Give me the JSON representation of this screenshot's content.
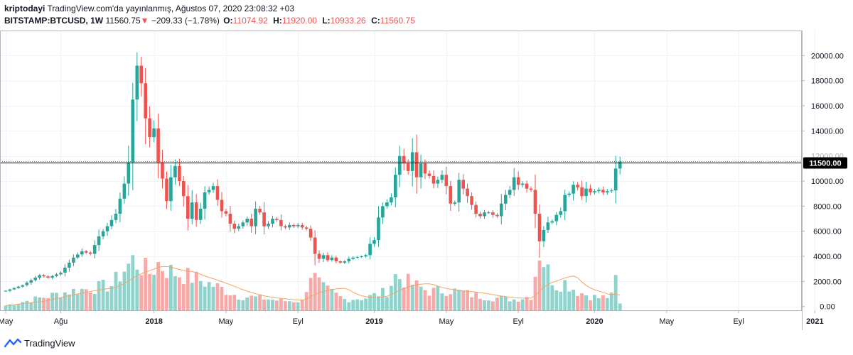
{
  "header": {
    "user": "kriptodayi",
    "published": "TradingView.com'da yayınlanmış, Ağustos 07, 2020 23:08:32 +03",
    "symbol": "BITSTAMP:BTCUSD, 1W",
    "last": "11560.75",
    "change": "−209.33 (−1.78%)",
    "o_label": "O:",
    "o_value": "11074.92",
    "h_label": "H:",
    "h_value": "11920.00",
    "l_label": "L:",
    "l_value": "10933.26",
    "c_label": "C:",
    "c_value": "11560.75"
  },
  "footer": {
    "brand": "TradingView"
  },
  "colors": {
    "up": "#26a69a",
    "down": "#ef5350",
    "vol_up": "#92d2cc",
    "vol_down": "#f7a9a7",
    "ma": "#f4a460",
    "hline": "#000000",
    "price_label": "#000000"
  },
  "chart_data": {
    "type": "candlestick",
    "symbol": "BITSTAMP:BTCUSD",
    "interval": "1W",
    "ylim": [
      -300,
      22000
    ],
    "y_ticks": [
      0,
      2000,
      4000,
      6000,
      8000,
      10000,
      12000,
      14000,
      16000,
      18000,
      20000
    ],
    "y_tick_labels": [
      "0.00",
      "2000.00",
      "4000.00",
      "6000.00",
      "8000.00",
      "10000.00",
      "12000.00",
      "14000.00",
      "16000.00",
      "18000.00",
      "20000.00"
    ],
    "x_ticks": [
      {
        "label": "May",
        "week": 0,
        "bold": false
      },
      {
        "label": "Ağu",
        "week": 13,
        "bold": false
      },
      {
        "label": "2018",
        "week": 35,
        "bold": true
      },
      {
        "label": "May",
        "week": 52,
        "bold": false
      },
      {
        "label": "Eyl",
        "week": 69,
        "bold": false
      },
      {
        "label": "2019",
        "week": 87,
        "bold": true
      },
      {
        "label": "May",
        "week": 104,
        "bold": false
      },
      {
        "label": "Eyl",
        "week": 121,
        "bold": false
      },
      {
        "label": "2020",
        "week": 139,
        "bold": true
      },
      {
        "label": "May",
        "week": 156,
        "bold": false
      },
      {
        "label": "Eyl",
        "week": 173,
        "bold": false
      },
      {
        "label": "2021",
        "week": 191,
        "bold": true
      }
    ],
    "horizontal_line": 11500,
    "price_label": "11500.00",
    "volume_scale_max": 5000,
    "anchors": [
      [
        0,
        1250
      ],
      [
        4,
        1700
      ],
      [
        8,
        2500
      ],
      [
        10,
        2300
      ],
      [
        13,
        2700
      ],
      [
        16,
        3900
      ],
      [
        18,
        4400
      ],
      [
        20,
        4200
      ],
      [
        22,
        5600
      ],
      [
        24,
        6400
      ],
      [
        26,
        7400
      ],
      [
        28,
        9800
      ],
      [
        29,
        11500
      ],
      [
        30,
        16500
      ],
      [
        31,
        19200
      ],
      [
        32,
        17800
      ],
      [
        33,
        15000
      ],
      [
        34,
        13500
      ],
      [
        35,
        14200
      ],
      [
        36,
        11500
      ],
      [
        37,
        10200
      ],
      [
        38,
        8400
      ],
      [
        39,
        10300
      ],
      [
        40,
        11200
      ],
      [
        41,
        10000
      ],
      [
        42,
        8800
      ],
      [
        43,
        7000
      ],
      [
        44,
        8300
      ],
      [
        45,
        6900
      ],
      [
        46,
        7800
      ],
      [
        47,
        9100
      ],
      [
        48,
        9300
      ],
      [
        49,
        9600
      ],
      [
        50,
        8500
      ],
      [
        51,
        7600
      ],
      [
        52,
        7400
      ],
      [
        53,
        6600
      ],
      [
        54,
        6200
      ],
      [
        55,
        6400
      ],
      [
        56,
        6700
      ],
      [
        57,
        7000
      ],
      [
        58,
        6400
      ],
      [
        59,
        7800
      ],
      [
        60,
        7500
      ],
      [
        61,
        6400
      ],
      [
        62,
        6600
      ],
      [
        63,
        7000
      ],
      [
        64,
        6900
      ],
      [
        65,
        6400
      ],
      [
        66,
        6300
      ],
      [
        67,
        6500
      ],
      [
        68,
        6400
      ],
      [
        69,
        6500
      ],
      [
        70,
        6300
      ],
      [
        71,
        6200
      ],
      [
        72,
        5500
      ],
      [
        73,
        4200
      ],
      [
        74,
        3800
      ],
      [
        75,
        4100
      ],
      [
        76,
        3700
      ],
      [
        77,
        3900
      ],
      [
        78,
        3600
      ],
      [
        79,
        3500
      ],
      [
        80,
        3600
      ],
      [
        81,
        3800
      ],
      [
        82,
        3900
      ],
      [
        83,
        3950
      ],
      [
        84,
        4000
      ],
      [
        85,
        4100
      ],
      [
        86,
        5000
      ],
      [
        87,
        5300
      ],
      [
        88,
        7100
      ],
      [
        89,
        8000
      ],
      [
        90,
        8300
      ],
      [
        91,
        8700
      ],
      [
        92,
        10500
      ],
      [
        93,
        12000
      ],
      [
        94,
        11400
      ],
      [
        95,
        10800
      ],
      [
        96,
        12300
      ],
      [
        97,
        10300
      ],
      [
        98,
        11400
      ],
      [
        99,
        10600
      ],
      [
        100,
        10400
      ],
      [
        101,
        9800
      ],
      [
        102,
        10100
      ],
      [
        103,
        10500
      ],
      [
        104,
        9600
      ],
      [
        105,
        8200
      ],
      [
        106,
        8300
      ],
      [
        107,
        10100
      ],
      [
        108,
        9400
      ],
      [
        109,
        8800
      ],
      [
        110,
        8100
      ],
      [
        111,
        7400
      ],
      [
        112,
        7200
      ],
      [
        113,
        7500
      ],
      [
        114,
        7500
      ],
      [
        115,
        7300
      ],
      [
        116,
        7200
      ],
      [
        117,
        8200
      ],
      [
        118,
        8900
      ],
      [
        119,
        9300
      ],
      [
        120,
        10300
      ],
      [
        121,
        9700
      ],
      [
        122,
        9800
      ],
      [
        123,
        9400
      ],
      [
        124,
        9300
      ],
      [
        125,
        7400
      ],
      [
        126,
        5200
      ],
      [
        127,
        6100
      ],
      [
        128,
        6700
      ],
      [
        129,
        6800
      ],
      [
        130,
        7300
      ],
      [
        131,
        7600
      ],
      [
        132,
        8900
      ],
      [
        133,
        9000
      ],
      [
        134,
        9700
      ],
      [
        135,
        9500
      ],
      [
        136,
        8800
      ],
      [
        137,
        9400
      ],
      [
        138,
        9100
      ],
      [
        139,
        9200
      ],
      [
        140,
        9300
      ],
      [
        141,
        9100
      ],
      [
        142,
        9200
      ],
      [
        143,
        9250
      ],
      [
        144,
        11000
      ],
      [
        145,
        11560
      ]
    ],
    "volume_anchors": [
      [
        0,
        300
      ],
      [
        5,
        600
      ],
      [
        10,
        900
      ],
      [
        15,
        1200
      ],
      [
        20,
        1400
      ],
      [
        25,
        1600
      ],
      [
        28,
        2600
      ],
      [
        30,
        3200
      ],
      [
        32,
        2800
      ],
      [
        34,
        2400
      ],
      [
        36,
        3000
      ],
      [
        38,
        2600
      ],
      [
        40,
        2400
      ],
      [
        45,
        2000
      ],
      [
        50,
        1500
      ],
      [
        55,
        900
      ],
      [
        60,
        800
      ],
      [
        65,
        600
      ],
      [
        70,
        600
      ],
      [
        72,
        2400
      ],
      [
        75,
        1400
      ],
      [
        80,
        700
      ],
      [
        85,
        800
      ],
      [
        90,
        1200
      ],
      [
        92,
        2200
      ],
      [
        95,
        1800
      ],
      [
        100,
        1200
      ],
      [
        105,
        1300
      ],
      [
        110,
        1000
      ],
      [
        115,
        800
      ],
      [
        120,
        700
      ],
      [
        124,
        900
      ],
      [
        126,
        3800
      ],
      [
        128,
        2500
      ],
      [
        130,
        1600
      ],
      [
        132,
        1800
      ],
      [
        135,
        1200
      ],
      [
        138,
        900
      ],
      [
        140,
        800
      ],
      [
        143,
        900
      ],
      [
        144,
        2000
      ],
      [
        145,
        400
      ]
    ]
  }
}
